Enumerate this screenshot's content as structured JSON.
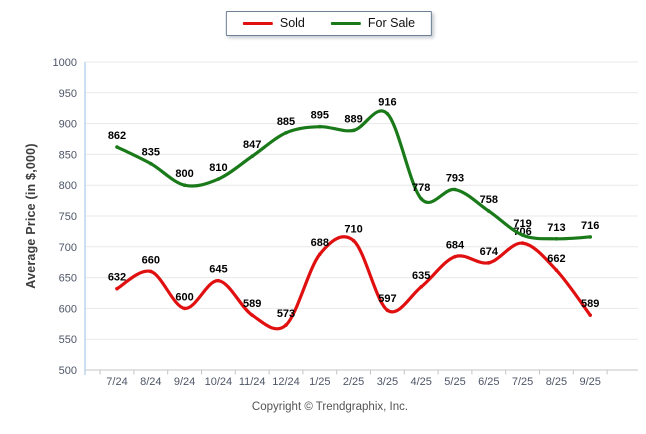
{
  "legend": {
    "items": [
      {
        "label": "Sold",
        "color": "#e01010"
      },
      {
        "label": "For Sale",
        "color": "#1a7a1a"
      }
    ]
  },
  "footer": {
    "copyright": "Copyright © Trendgraphix, Inc."
  },
  "chart_data": {
    "type": "line",
    "title": "",
    "ylabel": "Average Price (in $,000)",
    "xlabel": "",
    "categories": [
      "7/24",
      "8/24",
      "9/24",
      "10/24",
      "11/24",
      "12/24",
      "1/25",
      "2/25",
      "3/25",
      "4/25",
      "5/25",
      "6/25",
      "7/25",
      "8/25",
      "9/25"
    ],
    "series": [
      {
        "name": "Sold",
        "color": "#e01010",
        "values": [
          632,
          660,
          600,
          645,
          589,
          573,
          688,
          710,
          597,
          635,
          684,
          674,
          706,
          662,
          589
        ]
      },
      {
        "name": "For Sale",
        "color": "#1a7a1a",
        "values": [
          862,
          835,
          800,
          810,
          847,
          885,
          895,
          889,
          916,
          778,
          793,
          758,
          719,
          713,
          716
        ]
      }
    ],
    "ylim": [
      500,
      1000
    ],
    "ytick_step": 50,
    "grid": true,
    "data_labels": true,
    "legend_position": "top",
    "colors": {
      "grid_line": "#e8e8e8",
      "axis_line": "#c5c5c5",
      "y_axis_line": "#bcd5ee",
      "tick_label": "#4d5566",
      "data_label": "#000000"
    }
  }
}
